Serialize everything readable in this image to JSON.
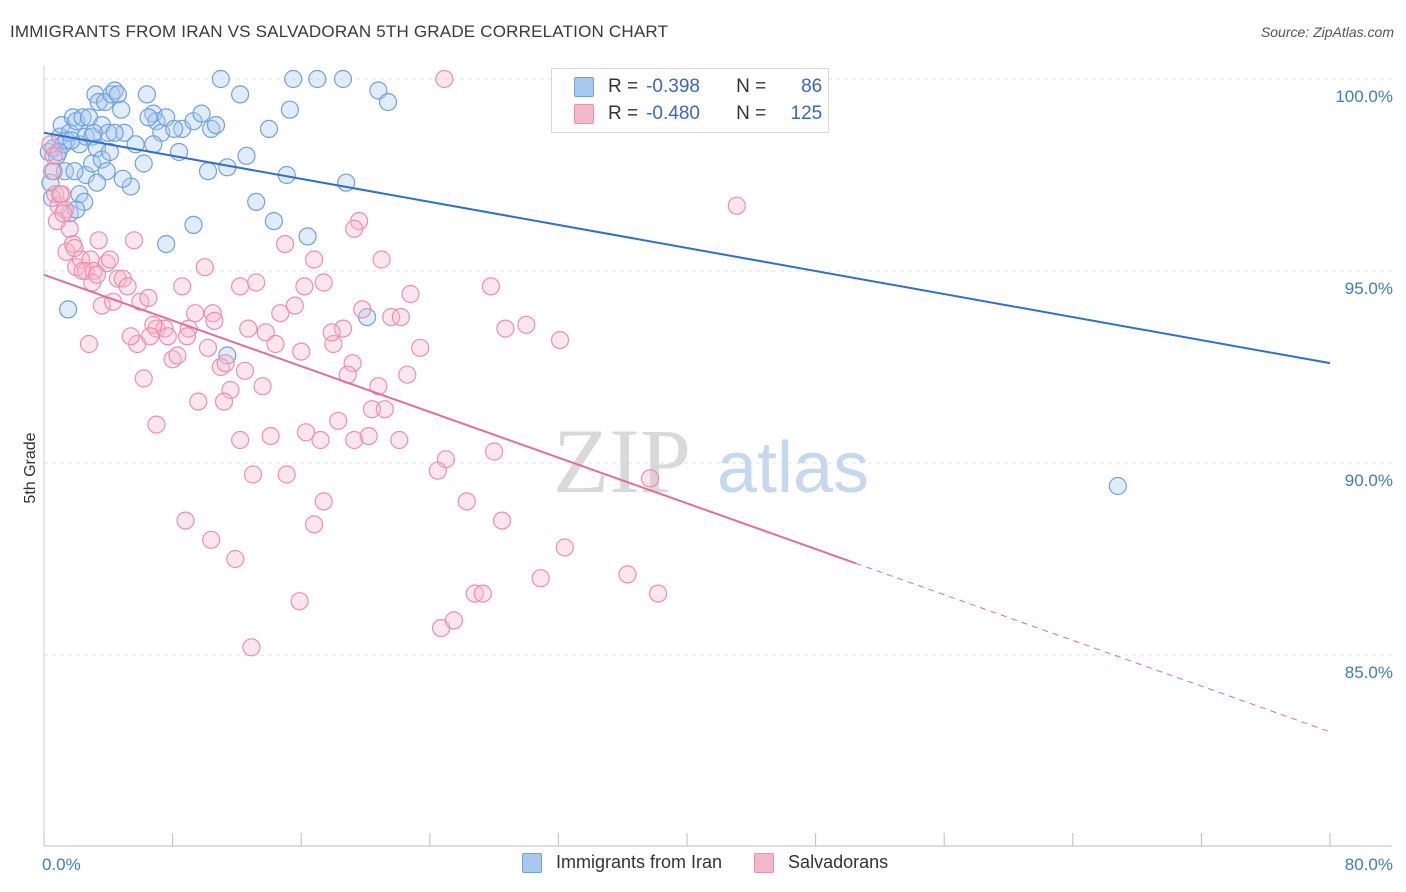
{
  "header": {
    "title": "IMMIGRANTS FROM IRAN VS SALVADORAN 5TH GRADE CORRELATION CHART",
    "source": "Source: ZipAtlas.com"
  },
  "watermark": {
    "part1": "ZIP",
    "part2": "atlas"
  },
  "legend": {
    "rows": [
      {
        "r_label": "R =",
        "r_value": "-0.398",
        "n_label": "N =",
        "n_value": "86",
        "color": "#a8c8f0"
      },
      {
        "r_label": "R =",
        "r_value": "-0.480",
        "n_label": "N =",
        "n_value": "125",
        "color": "#f5b8cb"
      }
    ]
  },
  "bottom_legend": [
    {
      "label": "Immigrants from Iran",
      "color": "#a8c8f0"
    },
    {
      "label": "Salvadorans",
      "color": "#f5b8cb"
    }
  ],
  "chart_data": {
    "type": "scatter",
    "title": "IMMIGRANTS FROM IRAN VS SALVADORAN 5TH GRADE CORRELATION CHART",
    "xlabel": "",
    "ylabel": "5th Grade",
    "xlim": [
      0,
      80
    ],
    "ylim": [
      80.5,
      100.5
    ],
    "x_tick_labels": [
      "0.0%",
      "80.0%"
    ],
    "y_ticks": [
      85,
      90,
      95,
      100
    ],
    "y_tick_labels": [
      "85.0%",
      "90.0%",
      "95.0%",
      "100.0%"
    ],
    "grid": true,
    "legend_position": "top-center",
    "series": [
      {
        "name": "Immigrants from Iran",
        "color": "#6fa2e0",
        "trend": {
          "x0": 0,
          "y0": 98.6,
          "x1": 80,
          "y1": 92.6,
          "dashed_from": null
        },
        "points": [
          [
            0.3,
            98.1
          ],
          [
            0.4,
            97.3
          ],
          [
            0.5,
            96.9
          ],
          [
            0.6,
            98.2
          ],
          [
            0.8,
            98.0
          ],
          [
            1.0,
            98.5
          ],
          [
            1.1,
            98.8
          ],
          [
            1.2,
            98.3
          ],
          [
            1.4,
            98.4
          ],
          [
            1.6,
            98.6
          ],
          [
            1.8,
            99.0
          ],
          [
            2.0,
            98.9
          ],
          [
            2.2,
            98.3
          ],
          [
            2.4,
            99.0
          ],
          [
            2.6,
            98.5
          ],
          [
            2.8,
            99.0
          ],
          [
            3.0,
            98.5
          ],
          [
            3.2,
            99.6
          ],
          [
            3.4,
            99.4
          ],
          [
            3.6,
            98.8
          ],
          [
            3.8,
            99.4
          ],
          [
            4.0,
            98.6
          ],
          [
            4.2,
            99.6
          ],
          [
            4.4,
            99.7
          ],
          [
            4.6,
            99.6
          ],
          [
            4.8,
            99.2
          ],
          [
            5.0,
            98.6
          ],
          [
            1.3,
            97.6
          ],
          [
            1.6,
            96.5
          ],
          [
            2.2,
            97.0
          ],
          [
            2.6,
            97.5
          ],
          [
            3.0,
            97.8
          ],
          [
            3.3,
            98.2
          ],
          [
            3.6,
            97.9
          ],
          [
            3.9,
            97.6
          ],
          [
            5.4,
            97.2
          ],
          [
            6.2,
            97.8
          ],
          [
            6.4,
            99.6
          ],
          [
            6.8,
            99.1
          ],
          [
            7.0,
            98.9
          ],
          [
            7.3,
            98.6
          ],
          [
            7.6,
            99.0
          ],
          [
            8.6,
            98.7
          ],
          [
            9.3,
            98.9
          ],
          [
            10.4,
            98.7
          ],
          [
            11.0,
            100.0
          ],
          [
            12.2,
            99.6
          ],
          [
            14.0,
            98.7
          ],
          [
            15.3,
            99.2
          ],
          [
            15.5,
            100.0
          ],
          [
            17.0,
            100.0
          ],
          [
            18.6,
            100.0
          ],
          [
            20.8,
            99.7
          ],
          [
            21.4,
            99.4
          ],
          [
            6.8,
            98.3
          ],
          [
            8.4,
            98.1
          ],
          [
            10.2,
            97.6
          ],
          [
            11.4,
            97.7
          ],
          [
            12.6,
            98.0
          ],
          [
            13.2,
            96.8
          ],
          [
            14.3,
            96.3
          ],
          [
            15.1,
            97.5
          ],
          [
            16.4,
            95.9
          ],
          [
            18.8,
            97.3
          ],
          [
            9.3,
            96.2
          ],
          [
            7.6,
            95.7
          ],
          [
            2.5,
            96.8
          ],
          [
            1.5,
            94.0
          ],
          [
            11.4,
            92.8
          ],
          [
            20.1,
            93.8
          ],
          [
            1.9,
            97.6
          ],
          [
            0.6,
            97.6
          ],
          [
            0.9,
            98.1
          ],
          [
            2.0,
            96.6
          ],
          [
            3.3,
            97.3
          ],
          [
            4.1,
            98.1
          ],
          [
            5.7,
            98.3
          ],
          [
            6.5,
            99.0
          ],
          [
            8.1,
            98.7
          ],
          [
            9.8,
            99.1
          ],
          [
            10.7,
            98.8
          ],
          [
            66.8,
            89.4
          ],
          [
            4.4,
            98.6
          ],
          [
            3.1,
            98.6
          ],
          [
            1.7,
            98.4
          ],
          [
            4.9,
            97.4
          ]
        ]
      },
      {
        "name": "Salvadorans",
        "color": "#ee8fad",
        "trend": {
          "x0": 0,
          "y0": 94.9,
          "x1": 80,
          "y1": 83.0,
          "dashed_from": 50.5
        },
        "points": [
          [
            0.4,
            98.3
          ],
          [
            0.5,
            97.6
          ],
          [
            0.7,
            97.0
          ],
          [
            0.9,
            96.7
          ],
          [
            1.1,
            97.0
          ],
          [
            1.3,
            96.6
          ],
          [
            1.6,
            96.1
          ],
          [
            1.8,
            95.7
          ],
          [
            2.0,
            95.1
          ],
          [
            2.3,
            95.3
          ],
          [
            2.6,
            95.0
          ],
          [
            2.9,
            95.3
          ],
          [
            3.1,
            95.0
          ],
          [
            3.4,
            95.8
          ],
          [
            3.6,
            94.1
          ],
          [
            3.9,
            95.2
          ],
          [
            4.1,
            95.3
          ],
          [
            4.3,
            94.2
          ],
          [
            4.6,
            94.8
          ],
          [
            4.9,
            94.8
          ],
          [
            5.2,
            94.6
          ],
          [
            5.6,
            95.8
          ],
          [
            6.0,
            94.2
          ],
          [
            6.5,
            94.3
          ],
          [
            7.0,
            93.5
          ],
          [
            7.5,
            93.5
          ],
          [
            8.0,
            92.7
          ],
          [
            8.6,
            94.6
          ],
          [
            9.0,
            93.5
          ],
          [
            9.4,
            93.9
          ],
          [
            10.0,
            95.1
          ],
          [
            10.5,
            93.9
          ],
          [
            11.0,
            92.5
          ],
          [
            11.6,
            91.9
          ],
          [
            12.2,
            94.6
          ],
          [
            12.7,
            93.5
          ],
          [
            13.2,
            94.7
          ],
          [
            13.8,
            93.4
          ],
          [
            14.4,
            93.1
          ],
          [
            15.0,
            95.7
          ],
          [
            15.6,
            94.1
          ],
          [
            16.2,
            94.6
          ],
          [
            16.8,
            95.3
          ],
          [
            17.4,
            94.7
          ],
          [
            18.0,
            93.1
          ],
          [
            18.6,
            93.5
          ],
          [
            19.2,
            92.6
          ],
          [
            19.8,
            94.0
          ],
          [
            20.4,
            91.4
          ],
          [
            21.0,
            95.3
          ],
          [
            21.6,
            93.8
          ],
          [
            22.2,
            93.8
          ],
          [
            22.8,
            94.4
          ],
          [
            23.4,
            93.0
          ],
          [
            2.8,
            93.1
          ],
          [
            5.8,
            93.1
          ],
          [
            6.2,
            92.2
          ],
          [
            7.0,
            91.0
          ],
          [
            8.3,
            92.8
          ],
          [
            9.6,
            91.6
          ],
          [
            11.2,
            91.6
          ],
          [
            12.2,
            90.6
          ],
          [
            13.0,
            89.7
          ],
          [
            14.1,
            90.7
          ],
          [
            15.1,
            89.7
          ],
          [
            16.3,
            90.8
          ],
          [
            17.2,
            90.6
          ],
          [
            18.3,
            91.1
          ],
          [
            19.3,
            90.6
          ],
          [
            20.2,
            90.7
          ],
          [
            21.2,
            91.4
          ],
          [
            22.1,
            90.6
          ],
          [
            8.8,
            88.5
          ],
          [
            10.4,
            88.0
          ],
          [
            11.9,
            87.5
          ],
          [
            12.9,
            85.2
          ],
          [
            15.9,
            86.4
          ],
          [
            16.8,
            88.4
          ],
          [
            17.4,
            89.0
          ],
          [
            24.7,
            85.7
          ],
          [
            25.5,
            85.9
          ],
          [
            26.8,
            86.6
          ],
          [
            27.3,
            86.6
          ],
          [
            28.5,
            88.5
          ],
          [
            30.9,
            87.0
          ],
          [
            32.4,
            87.8
          ],
          [
            36.3,
            87.1
          ],
          [
            38.2,
            86.6
          ],
          [
            25.0,
            90.1
          ],
          [
            26.3,
            89.0
          ],
          [
            28.0,
            90.3
          ],
          [
            37.7,
            89.6
          ],
          [
            24.9,
            100.0
          ],
          [
            27.8,
            94.6
          ],
          [
            28.7,
            93.5
          ],
          [
            30.0,
            93.6
          ],
          [
            32.1,
            93.2
          ],
          [
            19.6,
            96.3
          ],
          [
            19.3,
            96.1
          ],
          [
            43.1,
            96.7
          ],
          [
            0.6,
            98.0
          ],
          [
            0.8,
            96.3
          ],
          [
            1.0,
            97.0
          ],
          [
            1.2,
            96.5
          ],
          [
            1.4,
            95.5
          ],
          [
            1.9,
            95.6
          ],
          [
            2.4,
            95.0
          ],
          [
            3.0,
            94.7
          ],
          [
            3.3,
            94.9
          ],
          [
            5.4,
            93.3
          ],
          [
            6.8,
            93.6
          ],
          [
            7.7,
            93.3
          ],
          [
            8.9,
            93.3
          ],
          [
            10.2,
            93.0
          ],
          [
            11.3,
            92.6
          ],
          [
            12.5,
            92.4
          ],
          [
            13.6,
            92.0
          ],
          [
            14.7,
            93.9
          ],
          [
            16.0,
            92.9
          ],
          [
            17.9,
            93.4
          ],
          [
            18.9,
            92.3
          ],
          [
            20.8,
            92.0
          ],
          [
            22.6,
            92.3
          ],
          [
            24.5,
            89.8
          ],
          [
            10.6,
            93.7
          ],
          [
            6.6,
            93.3
          ]
        ]
      }
    ]
  }
}
